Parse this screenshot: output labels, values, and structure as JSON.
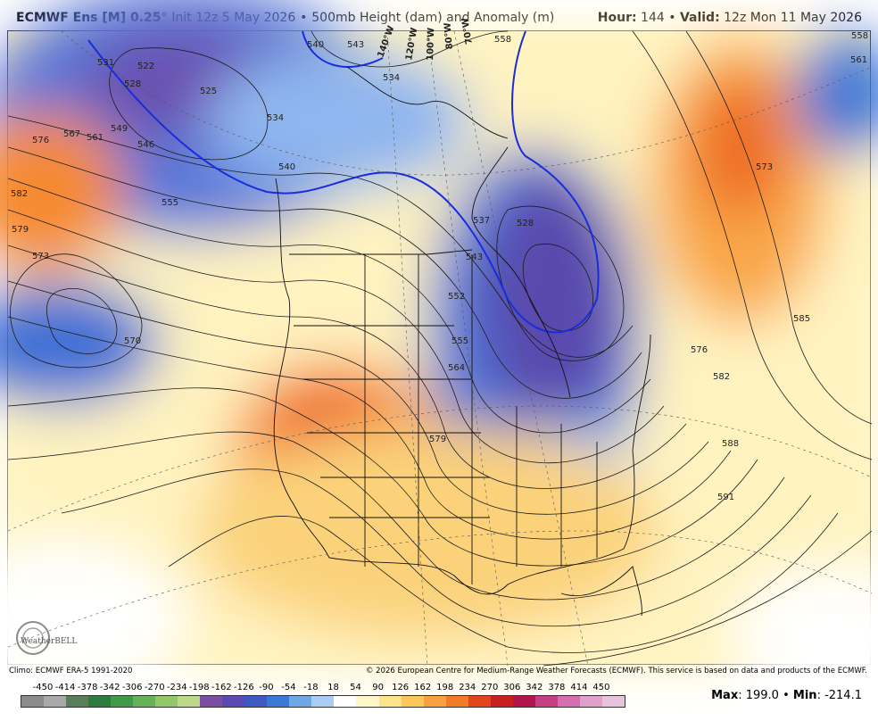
{
  "header": {
    "model": "ECMWF Ens [M] 0.25",
    "degree": "°",
    "init": "Init 12z 5 May 2026",
    "bullet": "•",
    "field": "500mb Height (dam) and Anomaly (m)",
    "hour_label": "Hour:",
    "hour_value": "144",
    "valid_label": "Valid:",
    "valid_value": "12z Mon 11 May 2026"
  },
  "footer": {
    "climo": "Climo: ECMWF ERA-5 1991-2020",
    "copyright": "© 2026 European Centre for Medium-Range Weather Forecasts (ECMWF). This service is based on data and products of the ECMWF."
  },
  "colorbar": {
    "labels": [
      "-450",
      "-414",
      "-378",
      "-342",
      "-306",
      "-270",
      "-234",
      "-198",
      "-162",
      "-126",
      "-90",
      "-54",
      "-18",
      "18",
      "54",
      "90",
      "126",
      "162",
      "198",
      "234",
      "270",
      "306",
      "342",
      "378",
      "414",
      "450"
    ],
    "colors": [
      "#8c8c8c",
      "#a9a9a9",
      "#5a7e5a",
      "#2f7a3f",
      "#3f9a4a",
      "#66b25a",
      "#93c76a",
      "#bcd989",
      "#7a4fa3",
      "#5c4ab3",
      "#3f58c4",
      "#3a79d8",
      "#6ea6e6",
      "#a9cdf2",
      "#ffffff",
      "#fff6c8",
      "#fde48a",
      "#fbc65a",
      "#f8a13e",
      "#f27a28",
      "#e2461f",
      "#c81f1f",
      "#b2154c",
      "#c43f84",
      "#d66fb1",
      "#e0a0cc",
      "#e7c4de"
    ]
  },
  "stats": {
    "max_label": "Max",
    "max_value": "199.0",
    "min_label": "Min",
    "min_value": "-214.1"
  },
  "map": {
    "contour_labels": [
      "531",
      "528",
      "522",
      "525",
      "534",
      "546",
      "549",
      "540",
      "543",
      "534",
      "540",
      "561",
      "567",
      "576",
      "582",
      "579",
      "573",
      "555",
      "570",
      "552",
      "543",
      "537",
      "528",
      "555",
      "558",
      "564",
      "579",
      "576",
      "582",
      "585",
      "588",
      "591",
      "573",
      "561",
      "558"
    ],
    "meridian_labels": [
      "140°W",
      "120°W",
      "100°W",
      "80°W",
      "70°W"
    ],
    "logo": "WeatherBELL"
  }
}
